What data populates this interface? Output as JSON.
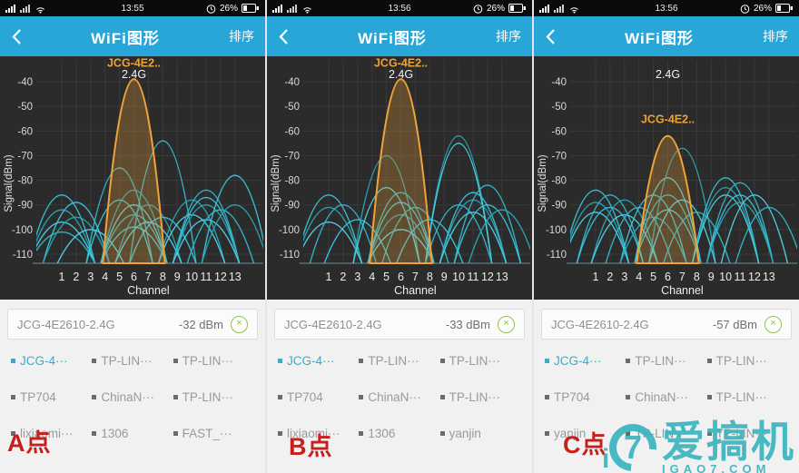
{
  "accent_color": "#29a6d8",
  "chart_bg_color": "#2b2b2b",
  "curve_color": "#38c6de",
  "selected_curve_color": "#f0a23a",
  "watermark": {
    "logo_char": "7",
    "logo_small": "i",
    "name": "爱搞机",
    "site": "IGAO7.COM",
    "color": "#3ab5bf"
  },
  "panels": [
    {
      "status": {
        "time": "13:55",
        "battery_pct": "26%"
      },
      "header": {
        "title": "WiFi图形",
        "sort_label": "排序"
      },
      "selected_bar": {
        "ssid": "JCG-4E2610-2.4G",
        "rssi": "-32 dBm"
      },
      "point_label": "A点",
      "networks": [
        {
          "label": "JCG-4···",
          "active": true
        },
        {
          "label": "TP-LIN···",
          "active": false
        },
        {
          "label": "TP-LIN···",
          "active": false
        },
        {
          "label": "TP704",
          "active": false
        },
        {
          "label": "ChinaN···",
          "active": false
        },
        {
          "label": "TP-LIN···",
          "active": false
        },
        {
          "label": "lixiaomi···",
          "active": false
        },
        {
          "label": "1306",
          "active": false
        },
        {
          "label": "FAST_···",
          "active": false
        }
      ]
    },
    {
      "status": {
        "time": "13:56",
        "battery_pct": "26%"
      },
      "header": {
        "title": "WiFi图形",
        "sort_label": "排序"
      },
      "selected_bar": {
        "ssid": "JCG-4E2610-2.4G",
        "rssi": "-33 dBm"
      },
      "point_label": "B点",
      "networks": [
        {
          "label": "JCG-4···",
          "active": true
        },
        {
          "label": "TP-LIN···",
          "active": false
        },
        {
          "label": "TP-LIN···",
          "active": false
        },
        {
          "label": "TP704",
          "active": false
        },
        {
          "label": "ChinaN···",
          "active": false
        },
        {
          "label": "TP-LIN···",
          "active": false
        },
        {
          "label": "lixiaomi···",
          "active": false
        },
        {
          "label": "1306",
          "active": false
        },
        {
          "label": "yanjin",
          "active": false
        }
      ]
    },
    {
      "status": {
        "time": "13:56",
        "battery_pct": "26%"
      },
      "header": {
        "title": "WiFi图形",
        "sort_label": "排序"
      },
      "selected_bar": {
        "ssid": "JCG-4E2610-2.4G",
        "rssi": "-57 dBm"
      },
      "point_label": "C点",
      "networks": [
        {
          "label": "JCG-4···",
          "active": true
        },
        {
          "label": "TP-LIN···",
          "active": false
        },
        {
          "label": "TP-LIN···",
          "active": false
        },
        {
          "label": "TP704",
          "active": false
        },
        {
          "label": "ChinaN···",
          "active": false
        },
        {
          "label": "TP-LIN···",
          "active": false
        },
        {
          "label": "yanjin",
          "active": false
        },
        {
          "label": "TP-LIN···",
          "active": false
        },
        {
          "label": "TP-LIN···",
          "active": false
        }
      ]
    }
  ],
  "chart_data": [
    {
      "type": "area",
      "title": "2.4G",
      "xlabel": "Channel",
      "ylabel": "Signal(dBm)",
      "x_ticks": [
        1,
        2,
        3,
        4,
        5,
        6,
        7,
        8,
        9,
        10,
        11,
        12,
        13
      ],
      "y_ticks": [
        -40,
        -50,
        -60,
        -70,
        -80,
        -90,
        -100,
        -110
      ],
      "ylim": [
        -113,
        -38
      ],
      "grid": true,
      "legend": "none",
      "selected": {
        "name": "JCG-4E2..",
        "ssid": "JCG-4E2610-2.4G",
        "channel": 6,
        "peak_dbm": -32,
        "display_peak_dbm": -39,
        "color": "#f0a23a"
      },
      "networks": [
        [
          1,
          -86
        ],
        [
          1,
          -92
        ],
        [
          1,
          -97
        ],
        [
          1,
          -101
        ],
        [
          2,
          -89
        ],
        [
          2,
          -95
        ],
        [
          3,
          -100
        ],
        [
          5,
          -75
        ],
        [
          5,
          -88
        ],
        [
          6,
          -84
        ],
        [
          6,
          -90
        ],
        [
          6,
          -94
        ],
        [
          6,
          -99
        ],
        [
          7,
          -90
        ],
        [
          7,
          -97
        ],
        [
          8,
          -64
        ],
        [
          8,
          -95
        ],
        [
          10,
          -88
        ],
        [
          10,
          -94
        ],
        [
          11,
          -84
        ],
        [
          11,
          -87
        ],
        [
          11,
          -90
        ],
        [
          11,
          -96
        ],
        [
          12,
          -92
        ],
        [
          13,
          -78
        ],
        [
          13,
          -90
        ]
      ]
    },
    {
      "type": "area",
      "title": "2.4G",
      "xlabel": "Channel",
      "ylabel": "Signal(dBm)",
      "x_ticks": [
        1,
        2,
        3,
        4,
        5,
        6,
        7,
        8,
        9,
        10,
        11,
        12,
        13
      ],
      "y_ticks": [
        -40,
        -50,
        -60,
        -70,
        -80,
        -90,
        -100,
        -110
      ],
      "ylim": [
        -113,
        -38
      ],
      "grid": true,
      "legend": "none",
      "selected": {
        "name": "JCG-4E2..",
        "ssid": "JCG-4E2610-2.4G",
        "channel": 6,
        "peak_dbm": -33,
        "display_peak_dbm": -39,
        "color": "#f0a23a"
      },
      "networks": [
        [
          1,
          -86
        ],
        [
          1,
          -91
        ],
        [
          1,
          -97
        ],
        [
          2,
          -90
        ],
        [
          3,
          -96
        ],
        [
          5,
          -70
        ],
        [
          5,
          -83
        ],
        [
          6,
          -85
        ],
        [
          6,
          -89
        ],
        [
          6,
          -94
        ],
        [
          6,
          -100
        ],
        [
          7,
          -91
        ],
        [
          8,
          -96
        ],
        [
          10,
          -62
        ],
        [
          10,
          -65
        ],
        [
          10,
          -90
        ],
        [
          11,
          -85
        ],
        [
          11,
          -88
        ],
        [
          11,
          -93
        ],
        [
          12,
          -82
        ],
        [
          12,
          -90
        ],
        [
          13,
          -92
        ]
      ]
    },
    {
      "type": "area",
      "title": "2.4G",
      "xlabel": "Channel",
      "ylabel": "Signal(dBm)",
      "x_ticks": [
        1,
        2,
        3,
        4,
        5,
        6,
        7,
        8,
        9,
        10,
        11,
        12,
        13
      ],
      "y_ticks": [
        -40,
        -50,
        -60,
        -70,
        -80,
        -90,
        -100,
        -110
      ],
      "ylim": [
        -113,
        -38
      ],
      "grid": true,
      "legend": "none",
      "selected": {
        "name": "JCG-4E2..",
        "ssid": "JCG-4E2610-2.4G",
        "channel": 6,
        "peak_dbm": -57,
        "display_peak_dbm": -62,
        "color": "#f0a23a"
      },
      "networks": [
        [
          1,
          -84
        ],
        [
          1,
          -89
        ],
        [
          1,
          -93
        ],
        [
          2,
          -86
        ],
        [
          2,
          -91
        ],
        [
          3,
          -88
        ],
        [
          3,
          -94
        ],
        [
          4,
          -91
        ],
        [
          5,
          -86
        ],
        [
          5,
          -95
        ],
        [
          6,
          -79
        ],
        [
          6,
          -86
        ],
        [
          6,
          -92
        ],
        [
          7,
          -67
        ],
        [
          7,
          -88
        ],
        [
          8,
          -93
        ],
        [
          10,
          -79
        ],
        [
          10,
          -83
        ],
        [
          10,
          -86
        ],
        [
          11,
          -81
        ],
        [
          11,
          -86
        ],
        [
          11,
          -89
        ],
        [
          12,
          -86
        ],
        [
          13,
          -91
        ]
      ]
    }
  ]
}
